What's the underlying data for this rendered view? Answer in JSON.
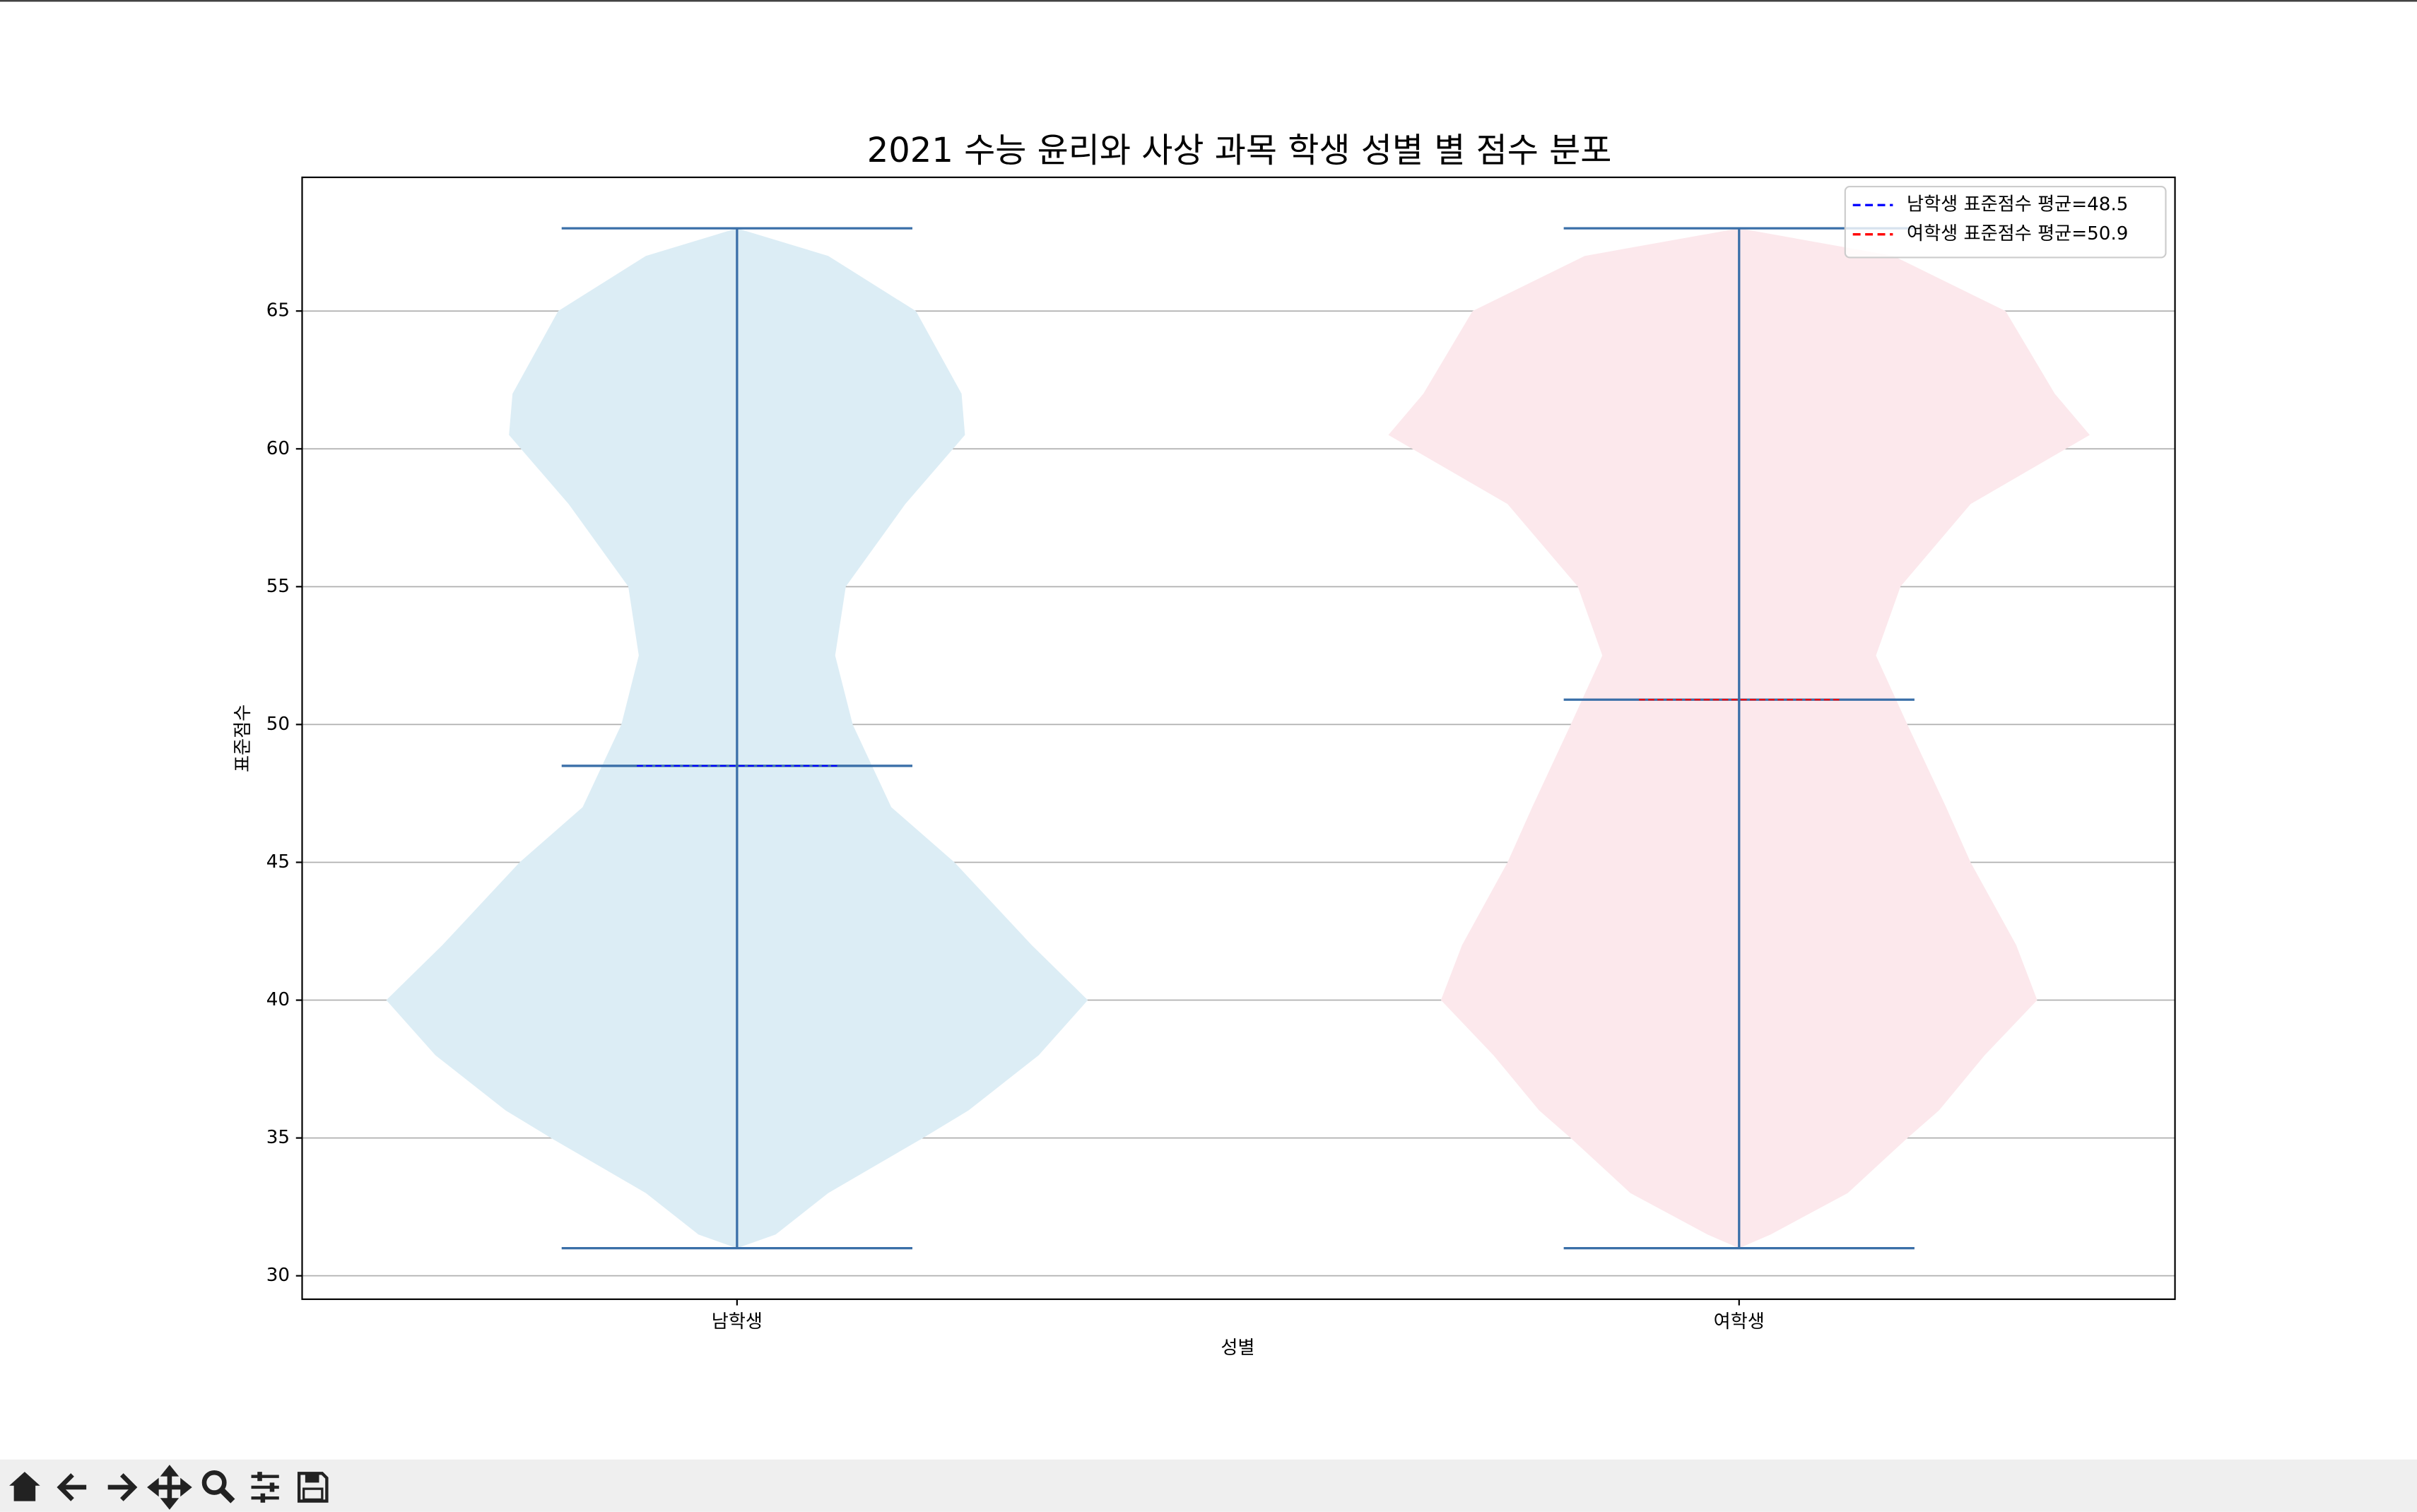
{
  "chart_data": {
    "type": "violin",
    "title": "2021 수능 윤리와 사상 과목 학생 성별 별 점수 분포",
    "xlabel": "성별",
    "ylabel": "표준점수",
    "categories": [
      "남학생",
      "여학생"
    ],
    "positions": [
      1,
      2
    ],
    "widths": 0.7,
    "density_y": [
      31,
      31.5,
      33,
      35,
      36,
      38,
      40,
      42,
      45,
      47,
      50,
      52.5,
      55,
      58,
      60.5,
      62,
      65,
      67,
      68
    ],
    "series": [
      {
        "name": "남학생",
        "color": "#dcedf5",
        "line_color": "#3a6fa8",
        "mean_color": "#0000ff",
        "min": 31,
        "max": 68,
        "mean": 48.5,
        "legend_label": "남학생 표준점수 평균=48.5",
        "density": [
          0,
          0.11,
          0.26,
          0.53,
          0.66,
          0.86,
          1,
          0.84,
          0.62,
          0.44,
          0.33,
          0.28,
          0.31,
          0.48,
          0.65,
          0.64,
          0.51,
          0.26,
          0
        ]
      },
      {
        "name": "여학생",
        "color": "#fce8ec",
        "line_color": "#3a6fa8",
        "mean_color": "#ff0000",
        "min": 31,
        "max": 68,
        "mean": 50.9,
        "legend_label": "여학생 표준점수 평균=50.9",
        "density": [
          0,
          0.09,
          0.31,
          0.48,
          0.57,
          0.7,
          0.85,
          0.79,
          0.66,
          0.59,
          0.48,
          0.39,
          0.46,
          0.66,
          1,
          0.9,
          0.76,
          0.44,
          0
        ]
      }
    ],
    "xlim": [
      0.566,
      2.435
    ],
    "ylim": [
      29.15,
      69.85
    ],
    "yticks": [
      30,
      35,
      40,
      45,
      50,
      55,
      60,
      65
    ],
    "grid": true,
    "grid_axis": "y",
    "legend": "upper right"
  }
}
